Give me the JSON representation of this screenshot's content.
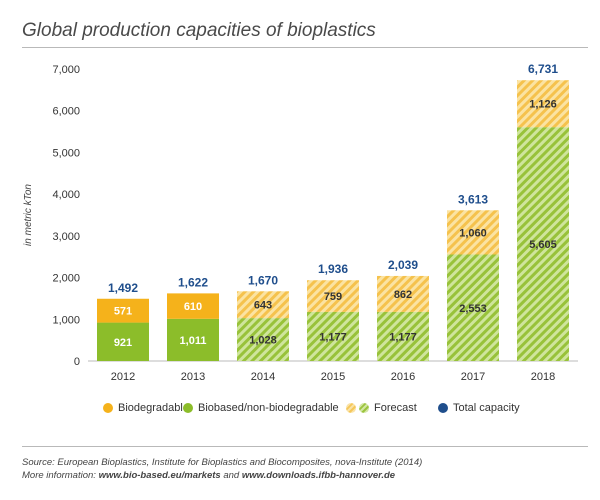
{
  "header": {
    "title": "Global production capacities of bioplastics"
  },
  "colors": {
    "biodegradable": "#f5b21b",
    "biobased": "#8cbd2a",
    "forecast_orange": "#f5c75a",
    "forecast_green": "#9bc43d",
    "total": "#1f4e8c"
  },
  "legend": {
    "biodegradable": "Biodegradable",
    "biobased": "Biobased/non-biodegradable",
    "forecast": "Forecast",
    "total": "Total capacity"
  },
  "chart_data": {
    "type": "bar",
    "stacked": true,
    "title": "Global production capacities of bioplastics",
    "xlabel": "",
    "ylabel": "in metric kTon",
    "ylim": [
      0,
      7000
    ],
    "yticks": [
      "0",
      "1,000",
      "2,000",
      "3,000",
      "4,000",
      "5,000",
      "6,000",
      "7,000"
    ],
    "ytick_values": [
      0,
      1000,
      2000,
      3000,
      4000,
      5000,
      6000,
      7000
    ],
    "categories": [
      "2012",
      "2013",
      "2014",
      "2015",
      "2016",
      "2017",
      "2018"
    ],
    "forecast": [
      false,
      false,
      true,
      true,
      true,
      true,
      true
    ],
    "series": [
      {
        "name": "Biobased/non-biodegradable",
        "values": [
          921,
          1011,
          1028,
          1177,
          1177,
          2553,
          5605
        ],
        "labels": [
          "921",
          "1,011",
          "1,028",
          "1,177",
          "1,177",
          "2,553",
          "5,605"
        ]
      },
      {
        "name": "Biodegradable",
        "values": [
          571,
          610,
          643,
          759,
          862,
          1060,
          1126
        ],
        "labels": [
          "571",
          "610",
          "643",
          "759",
          "862",
          "1,060",
          "1,126"
        ]
      }
    ],
    "totals": {
      "name": "Total capacity",
      "values": [
        1492,
        1622,
        1670,
        1936,
        2039,
        3613,
        6731
      ],
      "labels": [
        "1,492",
        "1,622",
        "1,670",
        "1,936",
        "2,039",
        "3,613",
        "6,731"
      ]
    },
    "grid": false,
    "legend_position": "bottom"
  },
  "footer": {
    "source": "Source: European Bioplastics, Institute for Bioplastics and Biocomposites, nova-Institute (2014)",
    "more_prefix": "More information:",
    "link1": "www.bio-based.eu/markets",
    "and": "and",
    "link2": "www.downloads.ifbb-hannover.de"
  }
}
